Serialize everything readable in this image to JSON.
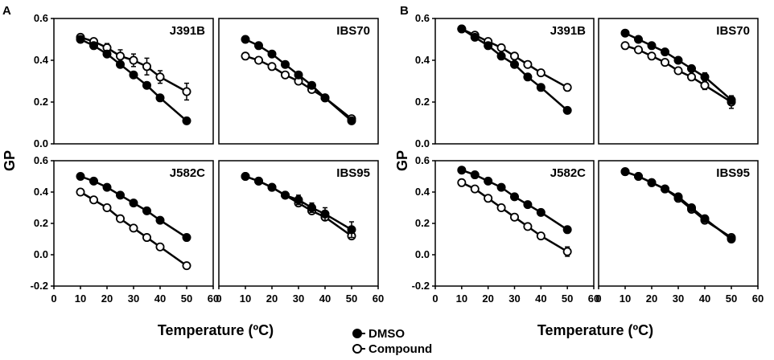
{
  "figure": {
    "panel_labels": [
      "A",
      "B"
    ],
    "ylabel": "GP",
    "xlabel": "Temperature (ºC)",
    "legend": [
      {
        "name": "DMSO",
        "marker": "filled"
      },
      {
        "name": "Compound",
        "marker": "open"
      }
    ],
    "x_ticks": [
      "0",
      "10",
      "20",
      "30",
      "40",
      "50",
      "60"
    ],
    "x_ticks_last_tick": [
      "0",
      "10",
      "20",
      "30",
      "40",
      "50",
      "60"
    ],
    "y_ticks_top": [
      "0.0",
      "0.2",
      "0.4",
      "0.6"
    ],
    "y_ticks_bottom": [
      "-0.2",
      "0.0",
      "0.2",
      "0.4",
      "0.6"
    ],
    "colors": {
      "line": "#000000",
      "open_fill": "#ffffff"
    }
  },
  "chart_data": [
    {
      "panel": "A",
      "type": "line",
      "title": "J391B",
      "xlabel": "Temperature (ºC)",
      "ylabel": "GP",
      "xlim": [
        0,
        60
      ],
      "ylim": [
        0,
        0.6
      ],
      "x": [
        10,
        15,
        20,
        25,
        30,
        35,
        40,
        50
      ],
      "series": [
        {
          "name": "DMSO",
          "values": [
            0.5,
            0.47,
            0.43,
            0.38,
            0.33,
            0.28,
            0.22,
            0.11
          ],
          "errors": [
            0.01,
            0.01,
            0.01,
            0.01,
            0.01,
            0.01,
            0.01,
            0.015
          ]
        },
        {
          "name": "Compound",
          "values": [
            0.51,
            0.49,
            0.46,
            0.42,
            0.4,
            0.37,
            0.32,
            0.25
          ],
          "errors": [
            0.01,
            0.01,
            0.02,
            0.03,
            0.03,
            0.04,
            0.03,
            0.04
          ]
        }
      ]
    },
    {
      "panel": "A",
      "type": "line",
      "title": "IBS70",
      "xlim": [
        0,
        60
      ],
      "ylim": [
        0,
        0.6
      ],
      "x": [
        10,
        15,
        20,
        25,
        30,
        35,
        40,
        50
      ],
      "series": [
        {
          "name": "DMSO",
          "values": [
            0.5,
            0.47,
            0.43,
            0.38,
            0.33,
            0.28,
            0.22,
            0.11
          ],
          "errors": [
            0.01,
            0.01,
            0.01,
            0.01,
            0.01,
            0.01,
            0.01,
            0.01
          ]
        },
        {
          "name": "Compound",
          "values": [
            0.42,
            0.4,
            0.37,
            0.33,
            0.3,
            0.26,
            0.22,
            0.12
          ],
          "errors": [
            0.01,
            0.01,
            0.01,
            0.01,
            0.01,
            0.01,
            0.01,
            0.01
          ]
        }
      ]
    },
    {
      "panel": "A",
      "type": "line",
      "title": "J582C",
      "xlim": [
        0,
        60
      ],
      "ylim": [
        -0.2,
        0.6
      ],
      "x": [
        10,
        15,
        20,
        25,
        30,
        35,
        40,
        50
      ],
      "series": [
        {
          "name": "DMSO",
          "values": [
            0.5,
            0.47,
            0.43,
            0.38,
            0.33,
            0.28,
            0.22,
            0.11
          ],
          "errors": [
            0.01,
            0.01,
            0.01,
            0.01,
            0.01,
            0.01,
            0.01,
            0.01
          ]
        },
        {
          "name": "Compound",
          "values": [
            0.4,
            0.35,
            0.3,
            0.23,
            0.17,
            0.11,
            0.05,
            -0.07
          ],
          "errors": [
            0.01,
            0.01,
            0.01,
            0.01,
            0.01,
            0.01,
            0.01,
            0.01
          ]
        }
      ]
    },
    {
      "panel": "A",
      "type": "line",
      "title": "IBS95",
      "xlim": [
        0,
        60
      ],
      "ylim": [
        -0.2,
        0.6
      ],
      "x": [
        10,
        15,
        20,
        25,
        30,
        35,
        40,
        50
      ],
      "series": [
        {
          "name": "DMSO",
          "values": [
            0.5,
            0.47,
            0.43,
            0.38,
            0.35,
            0.3,
            0.26,
            0.16
          ],
          "errors": [
            0.01,
            0.01,
            0.01,
            0.01,
            0.03,
            0.03,
            0.04,
            0.05
          ]
        },
        {
          "name": "Compound",
          "values": [
            0.5,
            0.47,
            0.43,
            0.38,
            0.33,
            0.28,
            0.24,
            0.12
          ],
          "errors": [
            0.01,
            0.01,
            0.02,
            0.02,
            0.02,
            0.02,
            0.02,
            0.02
          ]
        }
      ]
    },
    {
      "panel": "B",
      "type": "line",
      "title": "J391B",
      "xlim": [
        0,
        60
      ],
      "ylim": [
        0,
        0.6
      ],
      "x": [
        10,
        15,
        20,
        25,
        30,
        35,
        40,
        50
      ],
      "series": [
        {
          "name": "DMSO",
          "values": [
            0.55,
            0.51,
            0.47,
            0.42,
            0.38,
            0.32,
            0.27,
            0.16
          ],
          "errors": [
            0.01,
            0.01,
            0.01,
            0.01,
            0.01,
            0.01,
            0.01,
            0.01
          ]
        },
        {
          "name": "Compound",
          "values": [
            0.55,
            0.52,
            0.49,
            0.46,
            0.42,
            0.38,
            0.34,
            0.27
          ],
          "errors": [
            0.01,
            0.01,
            0.01,
            0.01,
            0.01,
            0.01,
            0.01,
            0.01
          ]
        }
      ]
    },
    {
      "panel": "B",
      "type": "line",
      "title": "IBS70",
      "xlim": [
        0,
        60
      ],
      "ylim": [
        0,
        0.6
      ],
      "x": [
        10,
        15,
        20,
        25,
        30,
        35,
        40,
        50
      ],
      "series": [
        {
          "name": "DMSO",
          "values": [
            0.53,
            0.5,
            0.47,
            0.44,
            0.4,
            0.36,
            0.32,
            0.21
          ],
          "errors": [
            0.01,
            0.01,
            0.01,
            0.01,
            0.01,
            0.01,
            0.02,
            0.02
          ]
        },
        {
          "name": "Compound",
          "values": [
            0.47,
            0.45,
            0.42,
            0.39,
            0.35,
            0.32,
            0.28,
            0.2
          ],
          "errors": [
            0.01,
            0.01,
            0.01,
            0.01,
            0.01,
            0.01,
            0.02,
            0.03
          ]
        }
      ]
    },
    {
      "panel": "B",
      "type": "line",
      "title": "J582C",
      "xlim": [
        0,
        60
      ],
      "ylim": [
        -0.2,
        0.6
      ],
      "x": [
        10,
        15,
        20,
        25,
        30,
        35,
        40,
        50
      ],
      "series": [
        {
          "name": "DMSO",
          "values": [
            0.54,
            0.51,
            0.47,
            0.43,
            0.37,
            0.32,
            0.27,
            0.16
          ],
          "errors": [
            0.01,
            0.01,
            0.01,
            0.01,
            0.01,
            0.01,
            0.01,
            0.01
          ]
        },
        {
          "name": "Compound",
          "values": [
            0.46,
            0.42,
            0.36,
            0.3,
            0.24,
            0.18,
            0.12,
            0.02
          ],
          "errors": [
            0.01,
            0.01,
            0.01,
            0.01,
            0.01,
            0.01,
            0.02,
            0.03
          ]
        }
      ]
    },
    {
      "panel": "B",
      "type": "line",
      "title": "IBS95",
      "xlim": [
        0,
        60
      ],
      "ylim": [
        -0.2,
        0.6
      ],
      "x": [
        10,
        15,
        20,
        25,
        30,
        35,
        40,
        50
      ],
      "series": [
        {
          "name": "DMSO",
          "values": [
            0.53,
            0.5,
            0.46,
            0.42,
            0.37,
            0.3,
            0.23,
            0.1
          ],
          "errors": [
            0.01,
            0.01,
            0.01,
            0.01,
            0.01,
            0.01,
            0.01,
            0.01
          ]
        },
        {
          "name": "Compound",
          "values": [
            0.53,
            0.5,
            0.46,
            0.42,
            0.36,
            0.29,
            0.22,
            0.11
          ],
          "errors": [
            0.01,
            0.01,
            0.01,
            0.01,
            0.01,
            0.01,
            0.01,
            0.01
          ]
        }
      ]
    }
  ]
}
